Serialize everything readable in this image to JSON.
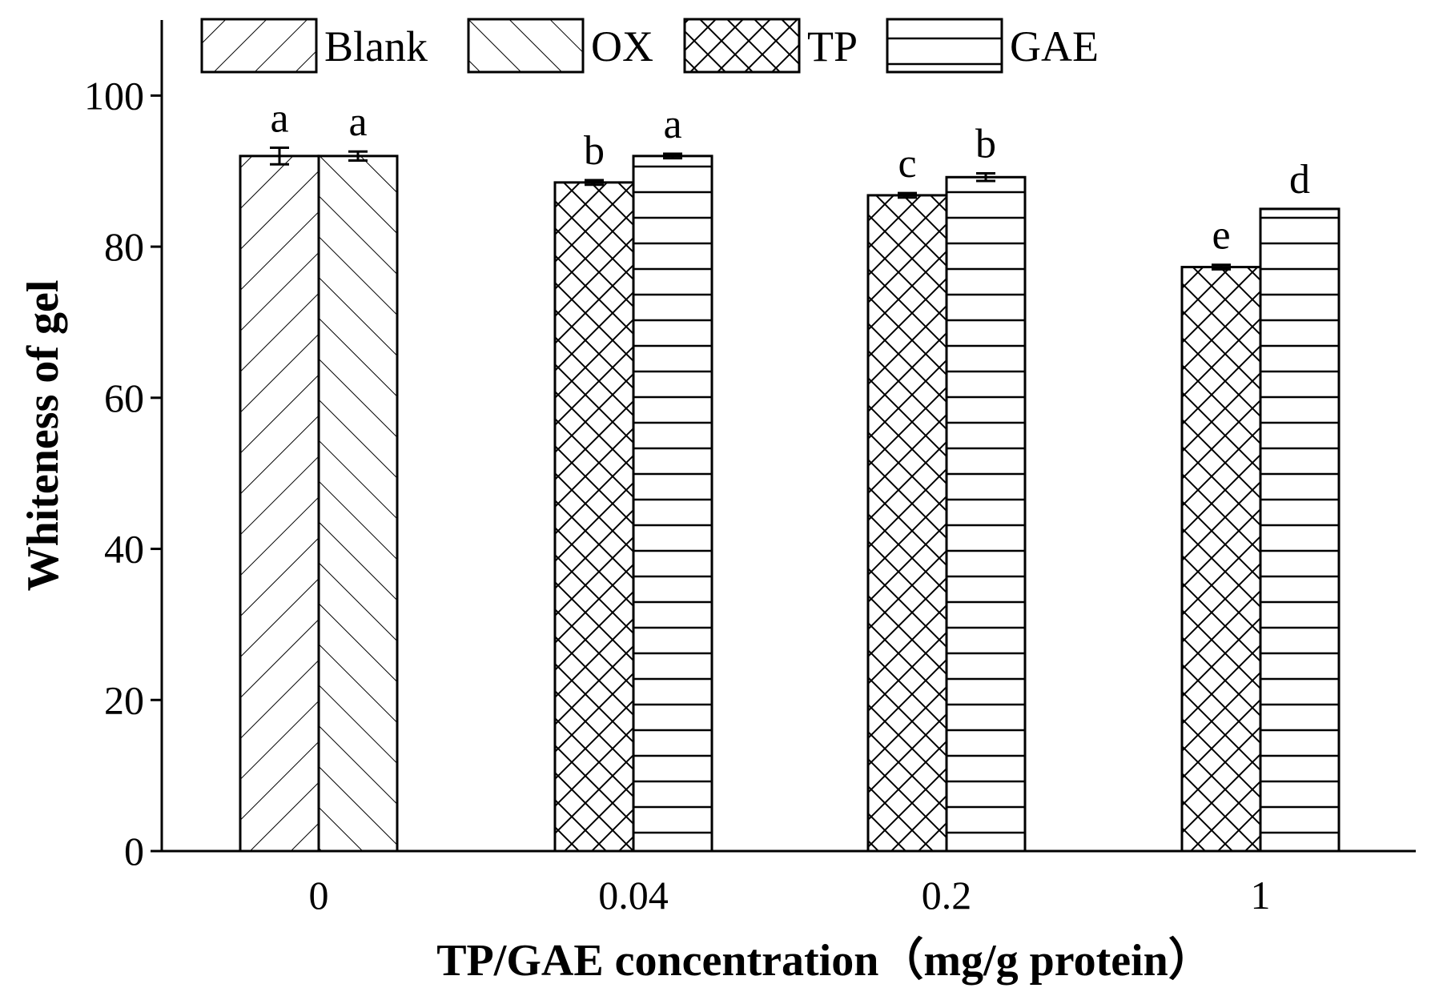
{
  "chart_data": {
    "type": "bar",
    "title": "",
    "xlabel": "TP/GAE concentration（mg/g protein）",
    "ylabel": "Whiteness of gel",
    "ylim": [
      0,
      110
    ],
    "yticks": [
      0,
      20,
      40,
      60,
      80,
      100
    ],
    "categories": [
      "0",
      "0.04",
      "0.2",
      "1"
    ],
    "legend": {
      "position": "top",
      "entries": [
        "Blank",
        "OX",
        "TP",
        "GAE"
      ]
    },
    "bars": [
      {
        "category": "0",
        "series": "Blank",
        "value": 92.0,
        "error": 1.1,
        "label": "a"
      },
      {
        "category": "0",
        "series": "OX",
        "value": 92.0,
        "error": 0.6,
        "label": "a"
      },
      {
        "category": "0.04",
        "series": "TP",
        "value": 88.5,
        "error": 0.3,
        "label": "b"
      },
      {
        "category": "0.04",
        "series": "GAE",
        "value": 92.0,
        "error": 0.3,
        "label": "a"
      },
      {
        "category": "0.2",
        "series": "TP",
        "value": 86.8,
        "error": 0.3,
        "label": "c"
      },
      {
        "category": "0.2",
        "series": "GAE",
        "value": 89.2,
        "error": 0.5,
        "label": "b"
      },
      {
        "category": "1",
        "series": "TP",
        "value": 77.3,
        "error": 0.3,
        "label": "e"
      },
      {
        "category": "1",
        "series": "GAE",
        "value": 85.0,
        "error": 0.0,
        "label": "d"
      }
    ],
    "patterns": {
      "Blank": "diagonal-forward",
      "OX": "diagonal-back",
      "TP": "crosshatch",
      "GAE": "horizontal"
    }
  }
}
